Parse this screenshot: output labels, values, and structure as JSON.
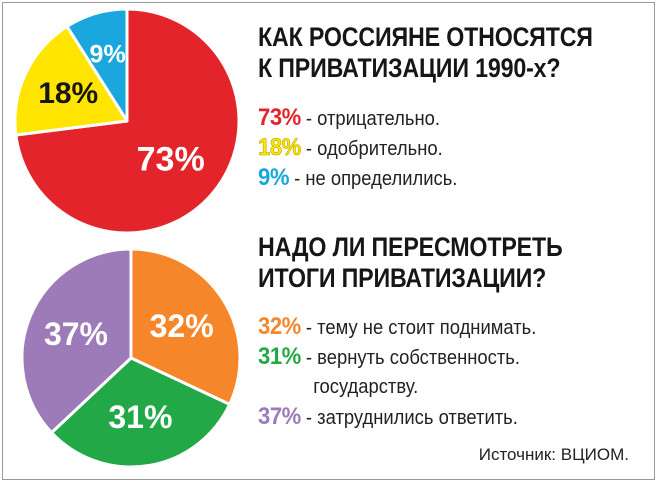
{
  "chart_data": [
    {
      "type": "pie",
      "title_lines": [
        "КАК РОССИЯНЕ ОТНОСЯТСЯ",
        "К ПРИВАТИЗАЦИИ 1990-х?"
      ],
      "slices": [
        {
          "value": 73,
          "label": "73%",
          "legend_text": " - отрицательно.",
          "color": "#e3242b"
        },
        {
          "value": 18,
          "label": "18%",
          "legend_text": " - одобрительно.",
          "color": "#ffe500"
        },
        {
          "value": 9,
          "label": "9%",
          "legend_text": " - не определились.",
          "color": "#1aa7de"
        }
      ]
    },
    {
      "type": "pie",
      "title_lines": [
        "НАДО ЛИ ПЕРЕСМОТРЕТЬ",
        "ИТОГИ ПРИВАТИЗАЦИИ?"
      ],
      "slices": [
        {
          "value": 32,
          "label": "32%",
          "legend_text": " - тему не стоит поднимать.",
          "color": "#f5862a"
        },
        {
          "value": 31,
          "label": "31%",
          "legend_text": " - вернуть собственность.",
          "legend_cont": "государству.",
          "color": "#22a846"
        },
        {
          "value": 37,
          "label": "37%",
          "legend_text": " - затруднились ответить.",
          "color": "#9c7bb8"
        }
      ]
    }
  ],
  "source": "Источник: ВЦИОМ."
}
